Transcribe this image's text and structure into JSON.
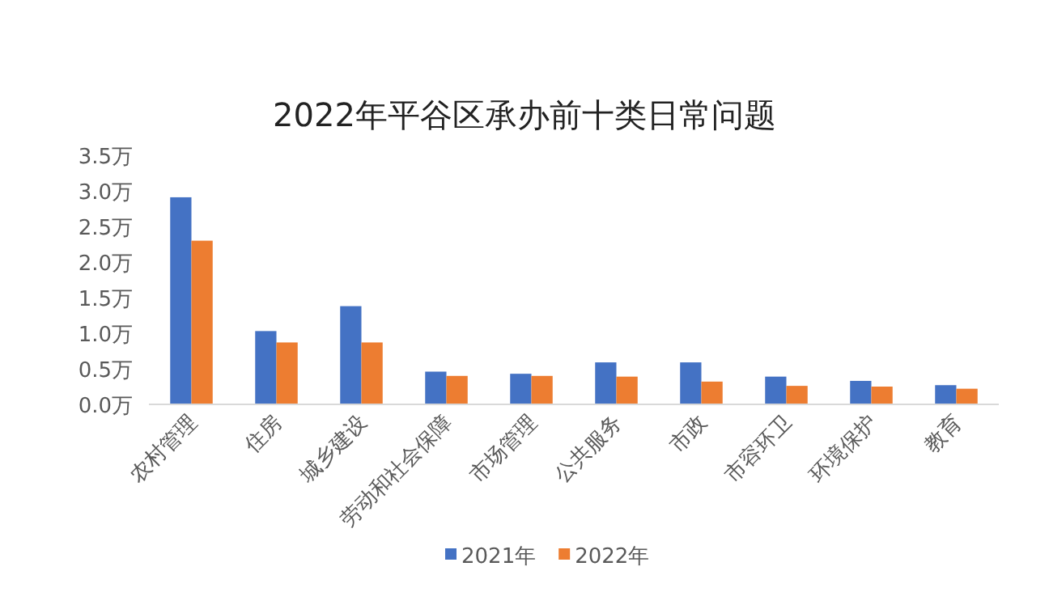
{
  "chart_data": {
    "type": "bar",
    "title": "2022年平谷区承办前十类日常问题",
    "categories": [
      "农村管理",
      "住房",
      "城乡建设",
      "劳动和社会保障",
      "市场管理",
      "公共服务",
      "市政",
      "市容环卫",
      "环境保护",
      "教育"
    ],
    "series": [
      {
        "name": "2021年",
        "color": "#4472c4",
        "values": [
          2.91,
          1.03,
          1.38,
          0.46,
          0.43,
          0.59,
          0.59,
          0.39,
          0.33,
          0.27
        ]
      },
      {
        "name": "2022年",
        "color": "#ed7d31",
        "values": [
          2.3,
          0.87,
          0.87,
          0.4,
          0.4,
          0.39,
          0.32,
          0.26,
          0.25,
          0.22
        ]
      }
    ],
    "ylim": [
      0,
      3.5
    ],
    "yticks": [
      {
        "value": 0,
        "label": "0.0万"
      },
      {
        "value": 0.5,
        "label": "0.5万"
      },
      {
        "value": 1,
        "label": "1.0万"
      },
      {
        "value": 1.5,
        "label": "1.5万"
      },
      {
        "value": 2,
        "label": "2.0万"
      },
      {
        "value": 2.5,
        "label": "2.5万"
      },
      {
        "value": 3,
        "label": "3.0万"
      },
      {
        "value": 3.5,
        "label": "3.5万"
      }
    ],
    "grid": false,
    "legend": "bottom"
  }
}
